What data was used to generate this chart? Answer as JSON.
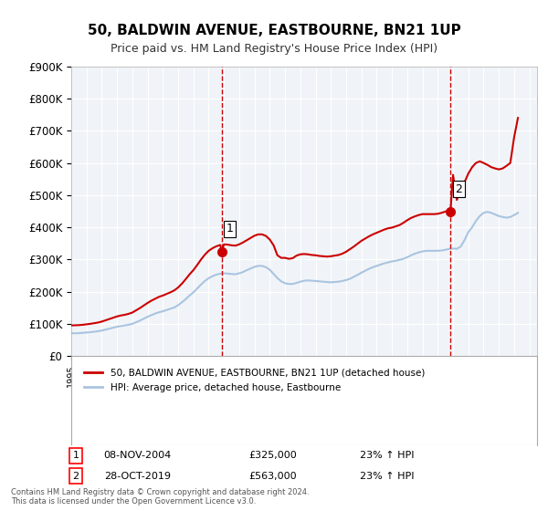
{
  "title": "50, BALDWIN AVENUE, EASTBOURNE, BN21 1UP",
  "subtitle": "Price paid vs. HM Land Registry's House Price Index (HPI)",
  "ylabel_ticks": [
    "£0",
    "£100K",
    "£200K",
    "£300K",
    "£400K",
    "£500K",
    "£600K",
    "£700K",
    "£800K",
    "£900K"
  ],
  "ylim": [
    0,
    900000
  ],
  "xlim_start": 1995.0,
  "xlim_end": 2025.5,
  "bg_color": "#dce9f5",
  "plot_bg": "#f0f4f8",
  "red_color": "#cc0000",
  "blue_color": "#aac4e0",
  "vline_color": "#cc0000",
  "sale1_year": 2004.86,
  "sale1_price": 325000,
  "sale2_year": 2019.83,
  "sale2_price": 563000,
  "legend_label1": "50, BALDWIN AVENUE, EASTBOURNE, BN21 1UP (detached house)",
  "legend_label2": "HPI: Average price, detached house, Eastbourne",
  "note1_num": "1",
  "note1_date": "08-NOV-2004",
  "note1_price": "£325,000",
  "note1_hpi": "23% ↑ HPI",
  "note2_num": "2",
  "note2_date": "28-OCT-2019",
  "note2_price": "£563,000",
  "note2_hpi": "23% ↑ HPI",
  "footer": "Contains HM Land Registry data © Crown copyright and database right 2024.\nThis data is licensed under the Open Government Licence v3.0.",
  "hpi_years": [
    1995.0,
    1995.25,
    1995.5,
    1995.75,
    1996.0,
    1996.25,
    1996.5,
    1996.75,
    1997.0,
    1997.25,
    1997.5,
    1997.75,
    1998.0,
    1998.25,
    1998.5,
    1998.75,
    1999.0,
    1999.25,
    1999.5,
    1999.75,
    2000.0,
    2000.25,
    2000.5,
    2000.75,
    2001.0,
    2001.25,
    2001.5,
    2001.75,
    2002.0,
    2002.25,
    2002.5,
    2002.75,
    2003.0,
    2003.25,
    2003.5,
    2003.75,
    2004.0,
    2004.25,
    2004.5,
    2004.75,
    2005.0,
    2005.25,
    2005.5,
    2005.75,
    2006.0,
    2006.25,
    2006.5,
    2006.75,
    2007.0,
    2007.25,
    2007.5,
    2007.75,
    2008.0,
    2008.25,
    2008.5,
    2008.75,
    2009.0,
    2009.25,
    2009.5,
    2009.75,
    2010.0,
    2010.25,
    2010.5,
    2010.75,
    2011.0,
    2011.25,
    2011.5,
    2011.75,
    2012.0,
    2012.25,
    2012.5,
    2012.75,
    2013.0,
    2013.25,
    2013.5,
    2013.75,
    2014.0,
    2014.25,
    2014.5,
    2014.75,
    2015.0,
    2015.25,
    2015.5,
    2015.75,
    2016.0,
    2016.25,
    2016.5,
    2016.75,
    2017.0,
    2017.25,
    2017.5,
    2017.75,
    2018.0,
    2018.25,
    2018.5,
    2018.75,
    2019.0,
    2019.25,
    2019.5,
    2019.75,
    2020.0,
    2020.25,
    2020.5,
    2020.75,
    2021.0,
    2021.25,
    2021.5,
    2021.75,
    2022.0,
    2022.25,
    2022.5,
    2022.75,
    2023.0,
    2023.25,
    2023.5,
    2023.75,
    2024.0,
    2024.25
  ],
  "hpi_values": [
    71000,
    70500,
    71000,
    72000,
    73000,
    74000,
    75500,
    77000,
    79000,
    82000,
    85000,
    88000,
    91000,
    93000,
    95000,
    97000,
    100000,
    105000,
    110000,
    116000,
    122000,
    127000,
    132000,
    136000,
    139000,
    143000,
    147000,
    151000,
    158000,
    167000,
    177000,
    188000,
    198000,
    210000,
    222000,
    233000,
    242000,
    248000,
    253000,
    256000,
    257000,
    256000,
    255000,
    254000,
    257000,
    261000,
    267000,
    272000,
    277000,
    280000,
    280000,
    276000,
    268000,
    255000,
    242000,
    232000,
    226000,
    224000,
    224000,
    227000,
    231000,
    234000,
    235000,
    234000,
    233000,
    232000,
    231000,
    230000,
    229000,
    230000,
    231000,
    233000,
    236000,
    240000,
    246000,
    252000,
    259000,
    265000,
    271000,
    276000,
    280000,
    284000,
    288000,
    291000,
    294000,
    296000,
    299000,
    302000,
    307000,
    313000,
    318000,
    322000,
    325000,
    327000,
    327000,
    327000,
    327000,
    328000,
    330000,
    333000,
    334000,
    333000,
    340000,
    360000,
    385000,
    400000,
    420000,
    435000,
    445000,
    448000,
    445000,
    440000,
    435000,
    432000,
    430000,
    432000,
    438000,
    445000
  ],
  "red_years": [
    1995.0,
    1995.25,
    1995.5,
    1995.75,
    1996.0,
    1996.25,
    1996.5,
    1996.75,
    1997.0,
    1997.25,
    1997.5,
    1997.75,
    1998.0,
    1998.25,
    1998.5,
    1998.75,
    1999.0,
    1999.25,
    1999.5,
    1999.75,
    2000.0,
    2000.25,
    2000.5,
    2000.75,
    2001.0,
    2001.25,
    2001.5,
    2001.75,
    2002.0,
    2002.25,
    2002.5,
    2002.75,
    2003.0,
    2003.25,
    2003.5,
    2003.75,
    2004.0,
    2004.25,
    2004.5,
    2004.75,
    2004.86,
    2005.0,
    2005.25,
    2005.5,
    2005.75,
    2006.0,
    2006.25,
    2006.5,
    2006.75,
    2007.0,
    2007.25,
    2007.5,
    2007.75,
    2008.0,
    2008.25,
    2008.5,
    2008.75,
    2009.0,
    2009.25,
    2009.5,
    2009.75,
    2010.0,
    2010.25,
    2010.5,
    2010.75,
    2011.0,
    2011.25,
    2011.5,
    2011.75,
    2012.0,
    2012.25,
    2012.5,
    2012.75,
    2013.0,
    2013.25,
    2013.5,
    2013.75,
    2014.0,
    2014.25,
    2014.5,
    2014.75,
    2015.0,
    2015.25,
    2015.5,
    2015.75,
    2016.0,
    2016.25,
    2016.5,
    2016.75,
    2017.0,
    2017.25,
    2017.5,
    2017.75,
    2018.0,
    2018.25,
    2018.5,
    2018.75,
    2019.0,
    2019.25,
    2019.5,
    2019.75,
    2019.83,
    2020.0,
    2020.25,
    2020.5,
    2020.75,
    2021.0,
    2021.25,
    2021.5,
    2021.75,
    2022.0,
    2022.25,
    2022.5,
    2022.75,
    2023.0,
    2023.25,
    2023.5,
    2023.75,
    2024.0,
    2024.25
  ],
  "red_values": [
    95000,
    95500,
    96000,
    97000,
    98500,
    100000,
    102000,
    104000,
    107000,
    111000,
    115000,
    119000,
    123000,
    126000,
    128000,
    131000,
    135000,
    142000,
    149000,
    157000,
    165000,
    172000,
    178000,
    184000,
    188000,
    193000,
    198000,
    204000,
    213000,
    225000,
    239000,
    254000,
    267000,
    283000,
    300000,
    315000,
    327000,
    335000,
    341000,
    345000,
    325000,
    347000,
    346000,
    344000,
    343000,
    347000,
    353000,
    360000,
    367000,
    374000,
    378000,
    378000,
    373000,
    362000,
    344000,
    313000,
    305000,
    305000,
    302000,
    304000,
    312000,
    316000,
    317000,
    316000,
    314000,
    313000,
    311000,
    310000,
    309000,
    310000,
    312000,
    314000,
    318000,
    324000,
    332000,
    340000,
    349000,
    358000,
    365000,
    372000,
    378000,
    383000,
    388000,
    393000,
    397000,
    399000,
    403000,
    407000,
    414000,
    422000,
    429000,
    434000,
    438000,
    441000,
    441000,
    441000,
    441000,
    442000,
    445000,
    449000,
    451000,
    449000,
    563000,
    485000,
    519000,
    540000,
    567000,
    587000,
    600000,
    605000,
    600000,
    594000,
    587000,
    583000,
    580000,
    583000,
    591000,
    600000,
    680000,
    740000
  ]
}
